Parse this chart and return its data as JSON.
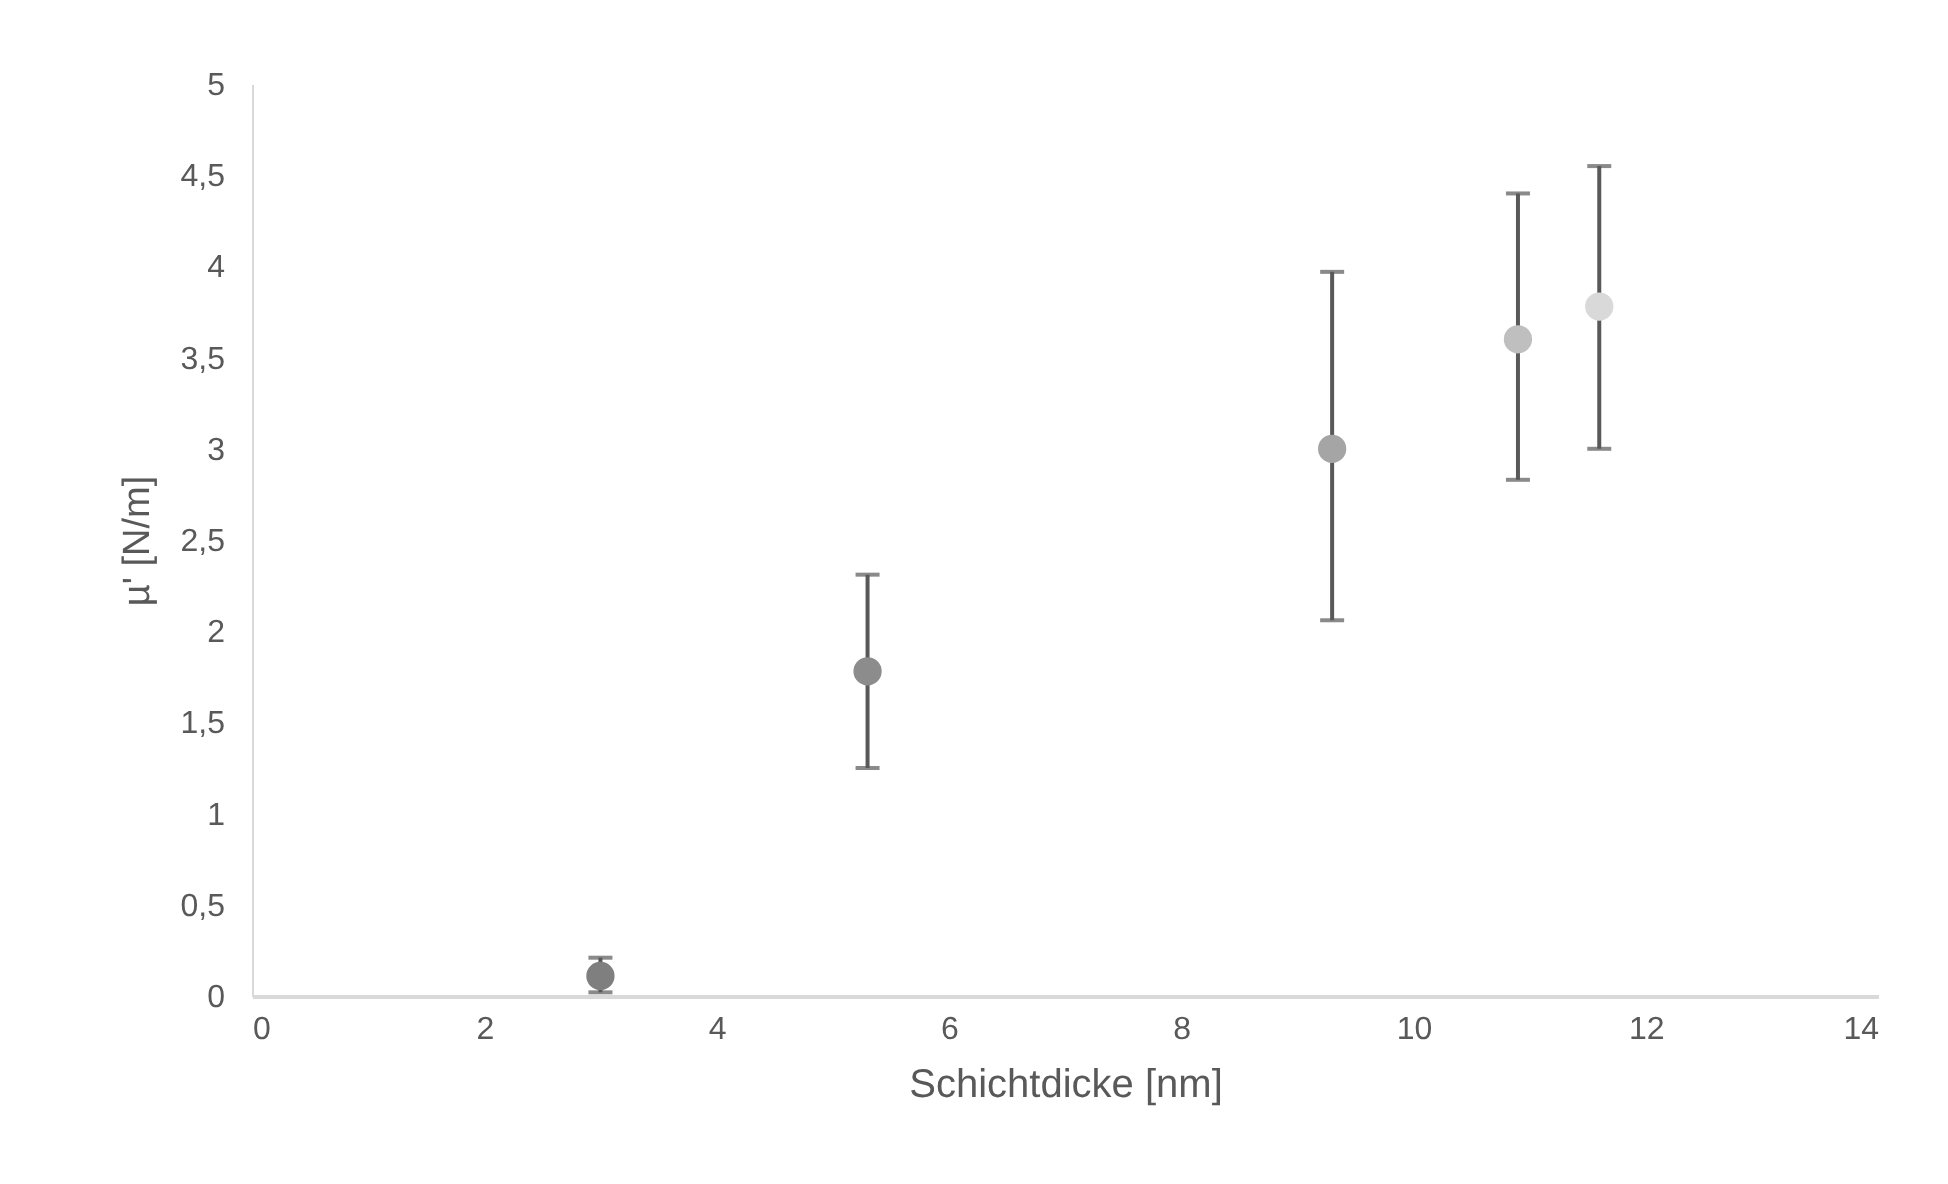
{
  "chart_data": {
    "type": "scatter",
    "xlabel": "Schichtdicke [nm]",
    "ylabel": "µ' [N/m]",
    "x": [
      3.0,
      5.3,
      9.3,
      10.9,
      11.6
    ],
    "values": [
      0.11,
      1.78,
      3.0,
      3.6,
      3.78
    ],
    "colors": [
      "#7f7f7f",
      "#8c8c8c",
      "#a5a5a5",
      "#bfbfbf",
      "#d9d9d9"
    ],
    "errors": [
      [
        0.02,
        0.21
      ],
      [
        1.25,
        2.31
      ],
      [
        2.06,
        3.97
      ],
      [
        2.83,
        4.4
      ],
      [
        3.0,
        4.55
      ]
    ],
    "marker": "circle",
    "xlim": [
      0,
      14
    ],
    "xticks": [
      0,
      2,
      4,
      6,
      8,
      10,
      12,
      14
    ],
    "ylim": [
      0,
      5
    ],
    "yticks": [
      0,
      {
        "value": 0.5,
        "label": "0,5"
      },
      1,
      {
        "value": 1.5,
        "label": "1,5"
      },
      2,
      {
        "value": 2.5,
        "label": "2,5"
      },
      3,
      {
        "value": 3.5,
        "label": "3,5"
      },
      4,
      {
        "value": 4.5,
        "label": "4,5"
      },
      5
    ],
    "grid": false,
    "legend": false
  }
}
